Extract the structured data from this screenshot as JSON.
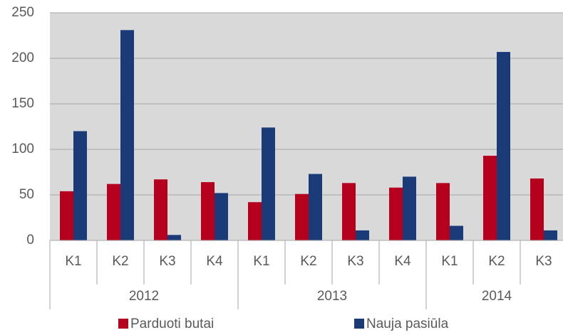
{
  "chart_data": {
    "type": "bar",
    "groups": [
      {
        "name": "2012",
        "categories": [
          "K1",
          "K2",
          "K3",
          "K4"
        ]
      },
      {
        "name": "2013",
        "categories": [
          "K1",
          "K2",
          "K3",
          "K4"
        ]
      },
      {
        "name": "2014",
        "categories": [
          "K1",
          "K2",
          "K3"
        ]
      }
    ],
    "series": [
      {
        "name": "Parduoti butai",
        "color": "#b5001e",
        "values": [
          54,
          62,
          67,
          64,
          42,
          51,
          63,
          58,
          63,
          93,
          68
        ]
      },
      {
        "name": "Nauja pasiūla",
        "color": "#1a3a78",
        "values": [
          120,
          231,
          6,
          52,
          124,
          73,
          11,
          70,
          16,
          207,
          11
        ]
      }
    ],
    "ylim": [
      0,
      250
    ],
    "yticks": [
      0,
      50,
      100,
      150,
      200,
      250
    ],
    "grid": true,
    "legend": "bottom"
  }
}
